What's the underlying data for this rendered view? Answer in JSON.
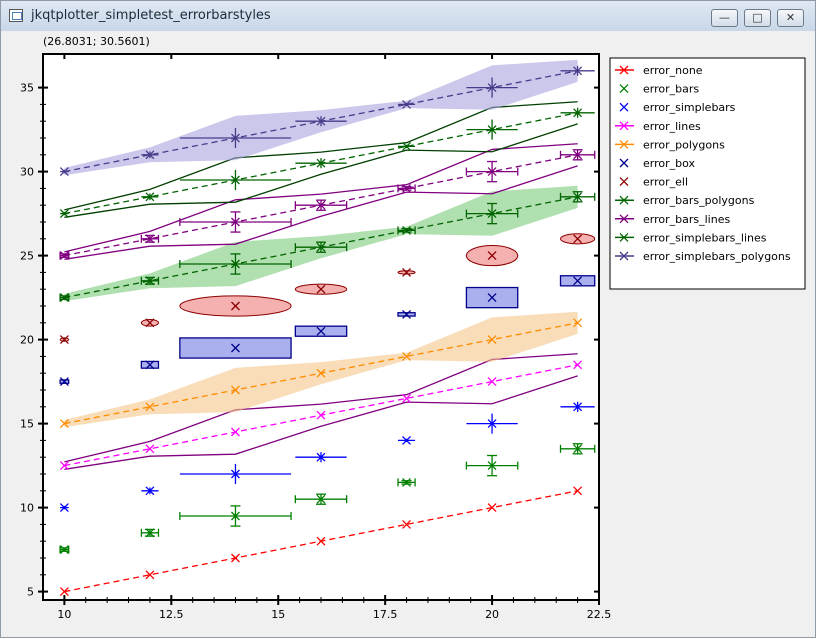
{
  "window": {
    "title": "jkqtplotter_simpletest_errorbarstyles",
    "minimize_glyph": "—",
    "maximize_glyph": "□",
    "close_glyph": "✕"
  },
  "status": {
    "coordinates": "(26.8031; 30.5601)"
  },
  "chart_data": {
    "type": "line",
    "x": [
      10,
      12,
      14,
      16,
      18,
      20,
      22
    ],
    "xlim": [
      9.5,
      22.5
    ],
    "ylim": [
      4.5,
      37
    ],
    "xticks": [
      "10",
      "12.5",
      "15",
      "17.5",
      "20",
      "22.5"
    ],
    "yticks": [
      "5",
      "10",
      "15",
      "20",
      "25",
      "30",
      "35"
    ],
    "legend_position": "right, outside plot",
    "series": [
      {
        "name": "error_none",
        "color": "#ff0000",
        "style": "none",
        "offset": 5,
        "line": true
      },
      {
        "name": "error_bars",
        "color": "#008000",
        "style": "bars",
        "offset": 7.5,
        "line": false
      },
      {
        "name": "error_simplebars",
        "color": "#0000ff",
        "style": "simplebars",
        "offset": 10,
        "line": false
      },
      {
        "name": "error_lines",
        "color": "#ff00ff",
        "style": "lines",
        "offset": 12.5,
        "line": true
      },
      {
        "name": "error_polygons",
        "color": "#ff8c00",
        "style": "polygons",
        "offset": 15,
        "line": true
      },
      {
        "name": "error_box",
        "color": "#00008b",
        "style": "box",
        "offset": 17.5,
        "line": false
      },
      {
        "name": "error_ell",
        "color": "#8b0000",
        "style": "ellipse",
        "offset": 20,
        "line": false
      },
      {
        "name": "error_bars_polygons",
        "color": "#006400",
        "style": "bars_polygons",
        "offset": 22.5,
        "line": true
      },
      {
        "name": "error_bars_lines",
        "color": "#800080",
        "style": "bars_lines",
        "offset": 25,
        "line": true
      },
      {
        "name": "error_simplebars_lines",
        "color": "#006400",
        "style": "simplebars_lines",
        "offset": 27.5,
        "line": true
      },
      {
        "name": "error_simplebars_polygons",
        "color": "#483d8b",
        "style": "simplebars_polygons",
        "offset": 30,
        "line": true
      }
    ],
    "y_increment": [
      0,
      1,
      2,
      3,
      4,
      5,
      6
    ],
    "x_error": [
      0.1,
      0.2,
      1.3,
      0.6,
      0.2,
      0.6,
      0.4
    ],
    "y_error": [
      0.1,
      0.2,
      0.6,
      0.3,
      0.1,
      0.6,
      0.3
    ]
  }
}
